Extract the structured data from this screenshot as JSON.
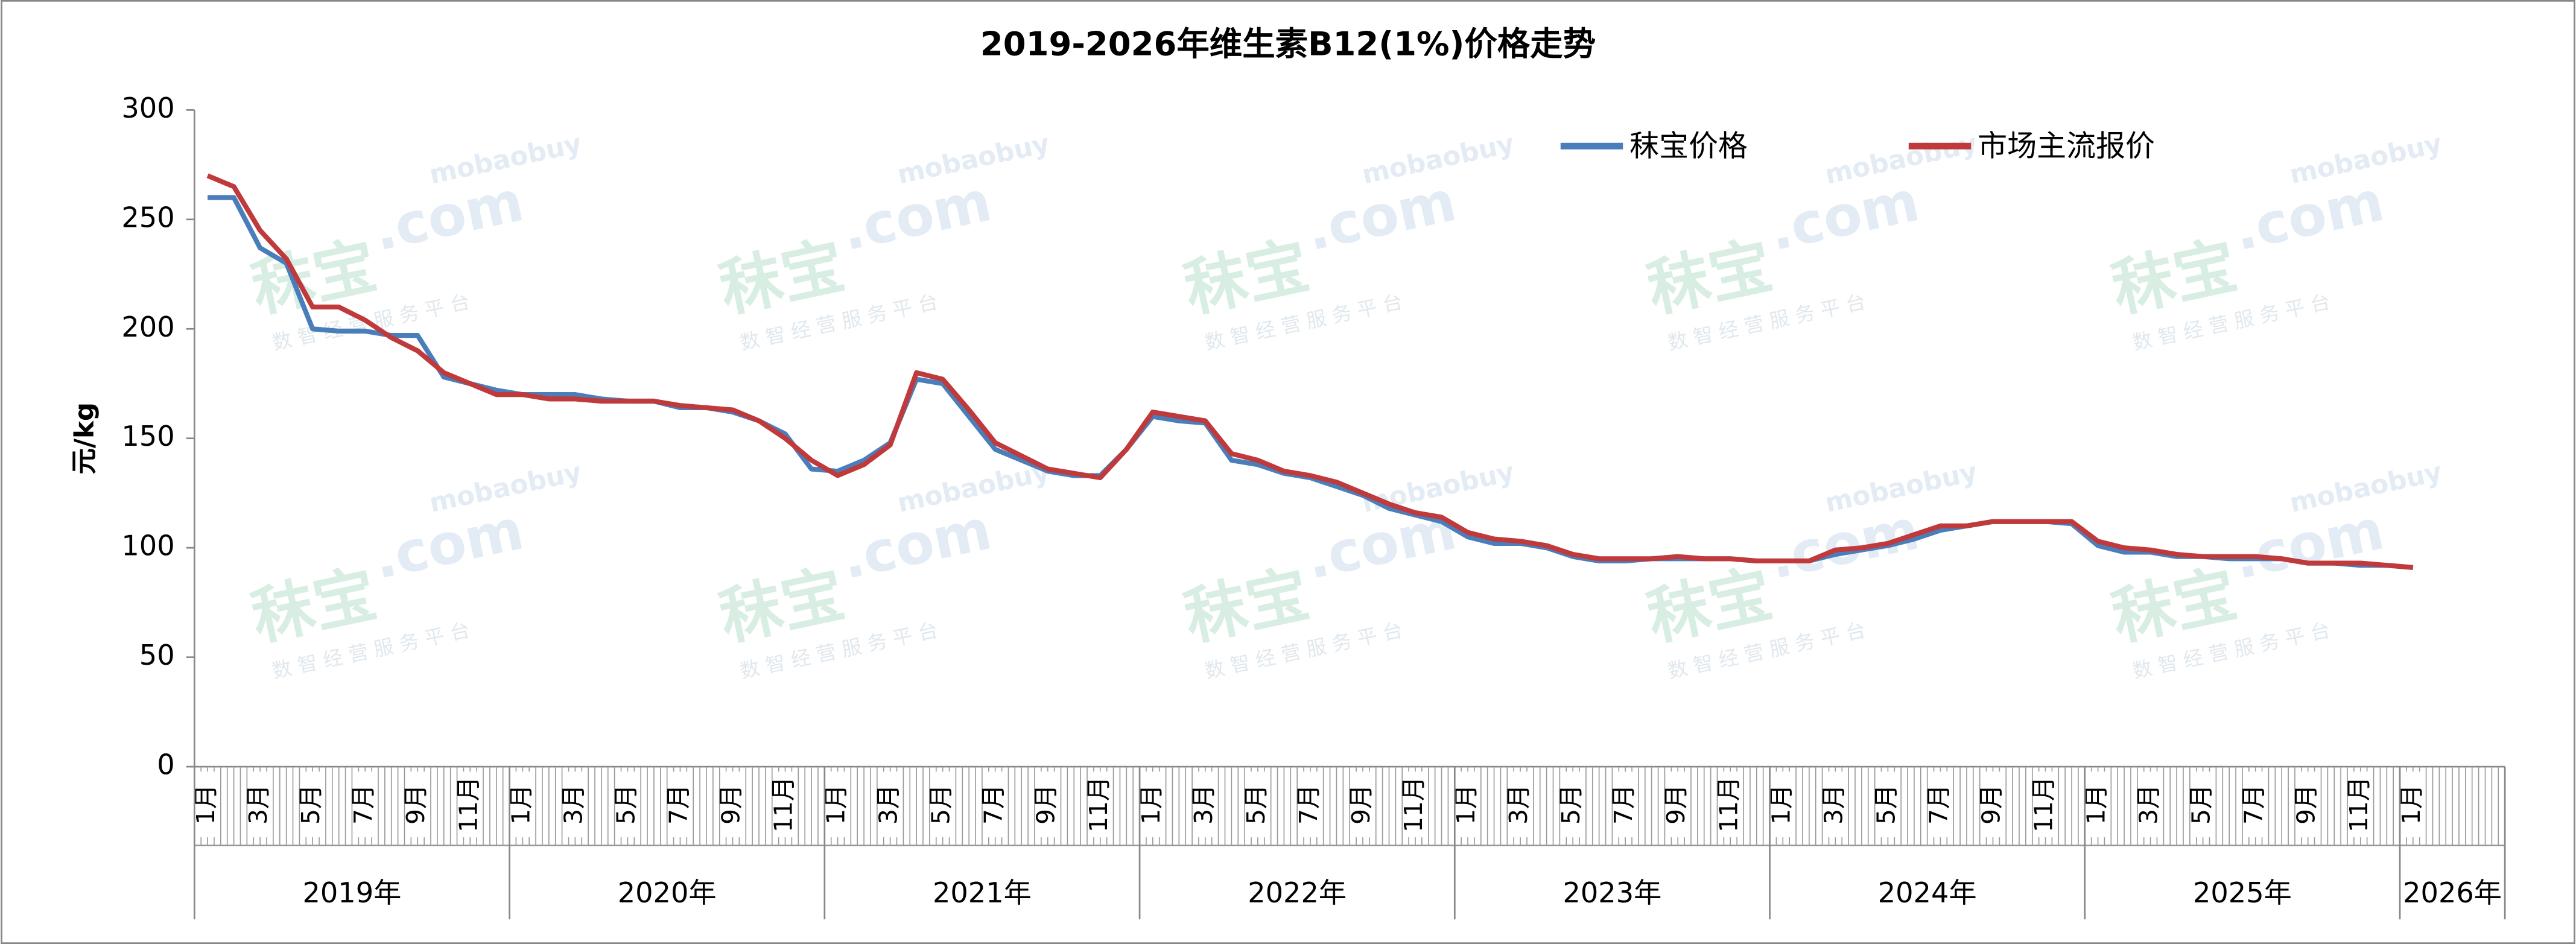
{
  "chart_data": {
    "type": "line",
    "title": "2019-2026年维生素B12(1%)价格走势",
    "y_label": "元/kg",
    "watermark": {
      "brand": "秣宝",
      "domain": ".com",
      "site": "mobaobuy",
      "tagline": "数 智 经 营 服 务 平 台"
    },
    "categories": [
      "1月",
      null,
      "3月",
      null,
      "5月",
      null,
      "7月",
      null,
      "9月",
      null,
      "11月",
      null,
      "1月",
      null,
      "3月",
      null,
      "5月",
      null,
      "7月",
      null,
      "9月",
      null,
      "11月",
      null,
      "1月",
      null,
      "3月",
      null,
      "5月",
      null,
      "7月",
      null,
      "9月",
      null,
      "11月",
      null,
      "1月",
      null,
      "3月",
      null,
      "5月",
      null,
      "7月",
      null,
      "9月",
      null,
      "11月",
      null,
      "1月",
      null,
      "3月",
      null,
      "5月",
      null,
      "7月",
      null,
      "9月",
      null,
      "11月",
      null,
      "1月",
      null,
      "3月",
      null,
      "5月",
      null,
      "7月",
      null,
      "9月",
      null,
      "11月",
      null,
      "1月",
      null,
      "3月",
      null,
      "5月",
      null,
      "7月",
      null,
      "9月",
      null,
      "11月",
      null,
      "1月",
      null,
      null,
      null
    ],
    "years": [
      "2019年",
      "2020年",
      "2021年",
      "2022年",
      "2023年",
      "2024年",
      "2025年",
      "2026年"
    ],
    "series": [
      {
        "name": "秣宝价格",
        "color": "#4a7ebb",
        "values": [
          260,
          260,
          237,
          230,
          200,
          199,
          199,
          197,
          197,
          178,
          175,
          172,
          170,
          170,
          170,
          168,
          167,
          167,
          164,
          164,
          162,
          158,
          152,
          136,
          135,
          140,
          148,
          177,
          175,
          160,
          145,
          140,
          135,
          133,
          133,
          145,
          160,
          158,
          157,
          140,
          138,
          134,
          132,
          128,
          124,
          118,
          115,
          112,
          105,
          102,
          102,
          100,
          96,
          94,
          94,
          95,
          95,
          95,
          95,
          94,
          94,
          94,
          97,
          99,
          101,
          104,
          108,
          110,
          112,
          112,
          112,
          111,
          101,
          98,
          98,
          96,
          96,
          95,
          95,
          95,
          93,
          93,
          92,
          92,
          91,
          null,
          null,
          null
        ]
      },
      {
        "name": "市场主流报价",
        "color": "#c0393b",
        "values": [
          270,
          265,
          245,
          232,
          210,
          210,
          204,
          196,
          190,
          180,
          175,
          170,
          170,
          168,
          168,
          167,
          167,
          167,
          165,
          164,
          163,
          158,
          150,
          140,
          133,
          138,
          147,
          180,
          177,
          163,
          148,
          142,
          136,
          134,
          132,
          145,
          162,
          160,
          158,
          143,
          140,
          135,
          133,
          130,
          125,
          120,
          116,
          114,
          107,
          104,
          103,
          101,
          97,
          95,
          95,
          95,
          96,
          95,
          95,
          94,
          94,
          94,
          99,
          100,
          102,
          106,
          110,
          110,
          112,
          112,
          112,
          112,
          103,
          100,
          99,
          97,
          96,
          96,
          96,
          95,
          93,
          93,
          93,
          92,
          91,
          null,
          null,
          null
        ]
      }
    ],
    "ylim": [
      0,
      300
    ],
    "yticks": [
      0,
      50,
      100,
      150,
      200,
      250,
      300
    ],
    "grid": false,
    "legend": "upper-right"
  }
}
